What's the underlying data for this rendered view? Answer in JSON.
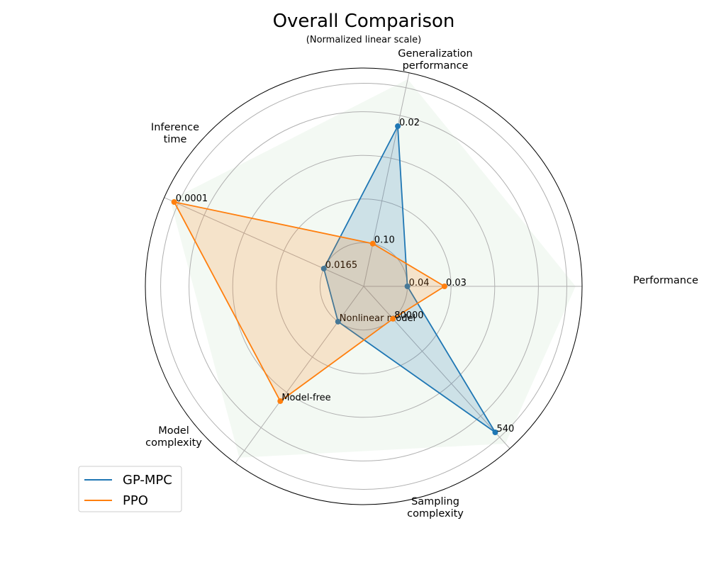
{
  "chart_data": {
    "type": "radar",
    "title": "Overall Comparison",
    "subtitle": "(Normalized linear scale)",
    "axes": [
      "Performance",
      "Generalization\nperformance",
      "Inference\ntime",
      "Model\ncomplexity",
      "Sampling\ncomplexity"
    ],
    "rlim": [
      0,
      1
    ],
    "grid": true,
    "grid_rings": [
      0.2,
      0.4,
      0.6,
      0.8,
      0.93
    ],
    "background_fill": {
      "color": "#2ca02c",
      "values": [
        0.97,
        0.97,
        0.97,
        0.97,
        0.97
      ]
    },
    "legend_position": "lower-left",
    "series": [
      {
        "name": "GP-MPC",
        "color": "#1f77b4",
        "values": [
          0.2,
          0.75,
          0.2,
          0.2,
          0.9
        ],
        "labels": [
          "0.04",
          "0.02",
          "0.0165",
          "Nonlinear model",
          "540"
        ]
      },
      {
        "name": "PPO",
        "color": "#ff7f0e",
        "values": [
          0.37,
          0.2,
          0.95,
          0.65,
          0.2
        ],
        "labels": [
          "0.03",
          "0.10",
          "0.0001",
          "Model-free",
          "80000"
        ]
      }
    ]
  }
}
